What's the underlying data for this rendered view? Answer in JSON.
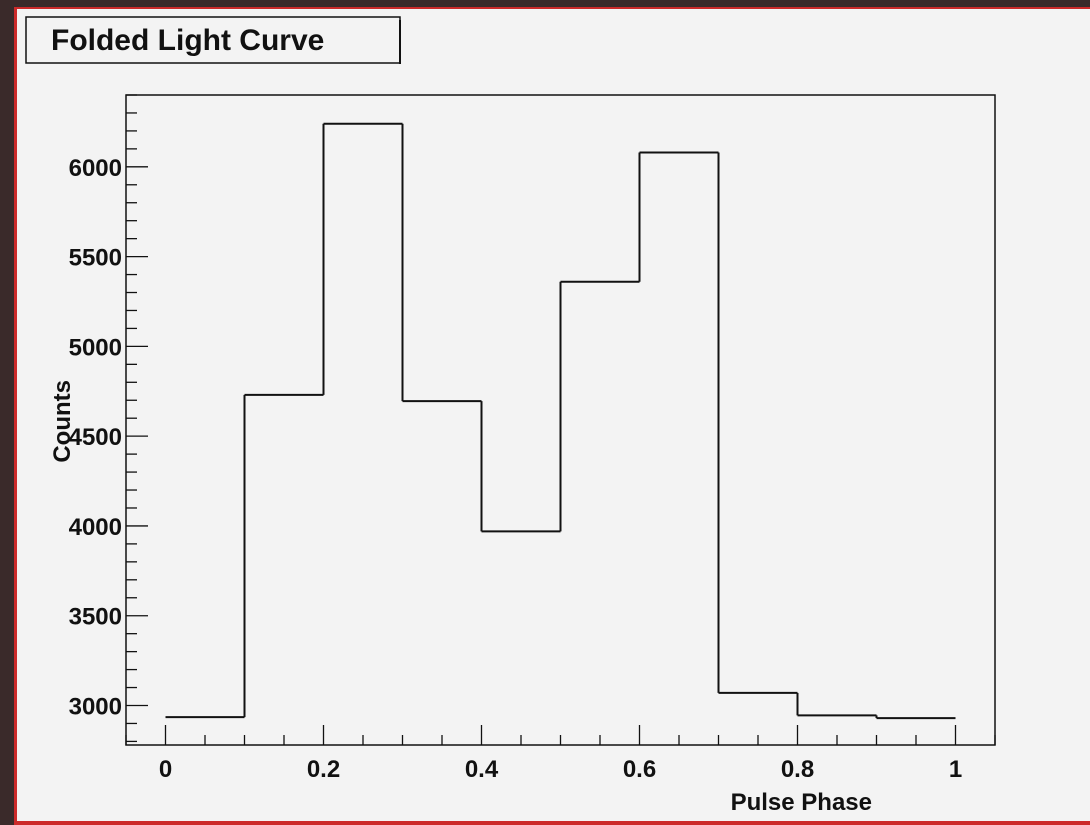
{
  "chart_data": {
    "type": "bar",
    "style": "step-histogram",
    "title": "Folded Light Curve",
    "xlabel": "Pulse Phase",
    "ylabel": "Counts",
    "bin_edges": [
      0,
      0.1,
      0.2,
      0.3,
      0.4,
      0.5,
      0.6,
      0.7,
      0.8,
      0.9,
      1.0
    ],
    "values": [
      2935,
      4730,
      6240,
      4695,
      3970,
      5360,
      6080,
      3070,
      2945,
      2930
    ],
    "xlim": [
      -0.05,
      1.05
    ],
    "ylim": [
      2780,
      6400
    ],
    "x_ticks": [
      0,
      0.2,
      0.4,
      0.6,
      0.8,
      1
    ],
    "x_tick_labels": [
      "0",
      "0.2",
      "0.4",
      "0.6",
      "0.8",
      "1"
    ],
    "y_ticks": [
      3000,
      3500,
      4000,
      4500,
      5000,
      5500,
      6000
    ],
    "y_tick_labels": [
      "3000",
      "3500",
      "4000",
      "4500",
      "5000",
      "5500",
      "6000"
    ],
    "grid": false,
    "legend": "none"
  },
  "colors": {
    "background": "#f3f3f3",
    "line": "#111111",
    "frame_dark": "#3a2a2a",
    "frame_red": "#cc2a2a"
  }
}
